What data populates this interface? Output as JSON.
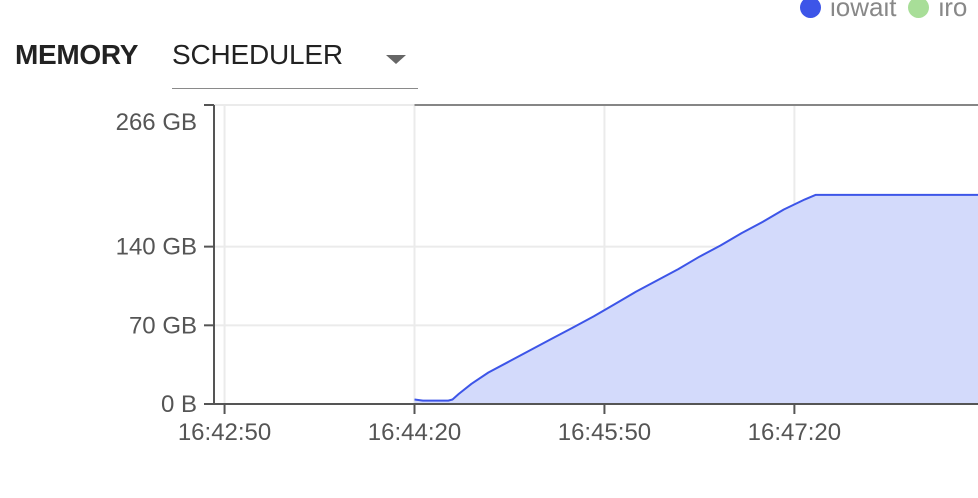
{
  "legend": {
    "items": [
      {
        "label": "iowait",
        "color": "#3d55e8"
      },
      {
        "label": "iro",
        "color": "#a8de98"
      }
    ]
  },
  "section": {
    "title": "MEMORY",
    "selector": {
      "value": "SCHEDULER",
      "arrow_icon": "caret-down-icon"
    }
  },
  "chart_data": {
    "type": "area",
    "title": "",
    "xlabel": "",
    "ylabel": "",
    "x_unit": "time",
    "y_unit": "GB",
    "x_range_seconds": [
      "16:42:45",
      "16:48:47"
    ],
    "ylim": [
      0,
      266
    ],
    "y_ticks": [
      {
        "value": 0,
        "label": "0 B"
      },
      {
        "value": 70,
        "label": "70 GB"
      },
      {
        "value": 140,
        "label": "140 GB"
      },
      {
        "value": 266,
        "label": "266 GB"
      }
    ],
    "x_ticks": [
      {
        "value": "16:42:50",
        "label": "16:42:50"
      },
      {
        "value": "16:44:20",
        "label": "16:44:20"
      },
      {
        "value": "16:45:50",
        "label": "16:45:50"
      },
      {
        "value": "16:47:20",
        "label": "16:47:20"
      }
    ],
    "line_color": "#3d55e8",
    "fill_color": "#d3dafb",
    "series": [
      {
        "name": "scheduler",
        "x": [
          "16:44:20",
          "16:44:24",
          "16:44:36",
          "16:44:38",
          "16:44:41",
          "16:44:47",
          "16:44:55",
          "16:45:05",
          "16:45:15",
          "16:45:25",
          "16:45:35",
          "16:45:45",
          "16:45:55",
          "16:46:05",
          "16:46:15",
          "16:46:25",
          "16:46:35",
          "16:46:45",
          "16:46:55",
          "16:47:05",
          "16:47:15",
          "16:47:25",
          "16:47:30",
          "16:48:47"
        ],
        "y": [
          4,
          3,
          3,
          4,
          9,
          18,
          28,
          38,
          48,
          58,
          68,
          78,
          89,
          100,
          110,
          120,
          131,
          141,
          152,
          162,
          173,
          182,
          186,
          186
        ]
      }
    ]
  }
}
